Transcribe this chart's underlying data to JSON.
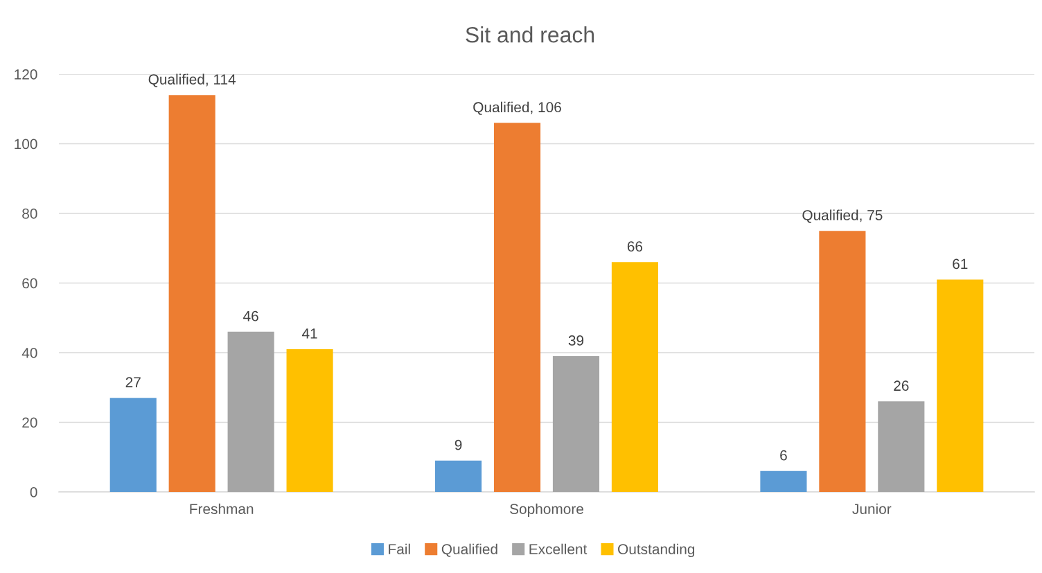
{
  "chart_data": {
    "type": "bar",
    "title": "Sit and reach",
    "categories": [
      "Freshman",
      "Sophomore",
      "Junior"
    ],
    "series": [
      {
        "name": "Fail",
        "color": "#5b9bd5",
        "values": [
          27,
          9,
          6
        ],
        "value_labels": [
          "27",
          "9",
          "6"
        ]
      },
      {
        "name": "Qualified",
        "color": "#ed7d31",
        "values": [
          114,
          106,
          75
        ],
        "value_labels": [
          "Qualified, 114",
          "Qualified, 106",
          "Qualified, 75"
        ]
      },
      {
        "name": "Excellent",
        "color": "#a5a5a5",
        "values": [
          46,
          39,
          26
        ],
        "value_labels": [
          "46",
          "39",
          "26"
        ]
      },
      {
        "name": "Outstanding",
        "color": "#ffc000",
        "values": [
          41,
          66,
          61
        ],
        "value_labels": [
          "41",
          "66",
          "61"
        ]
      }
    ],
    "ylim": [
      0,
      120
    ],
    "yticks": [
      0,
      20,
      40,
      60,
      80,
      100,
      120
    ],
    "grid": "y",
    "legend": "bottom"
  }
}
